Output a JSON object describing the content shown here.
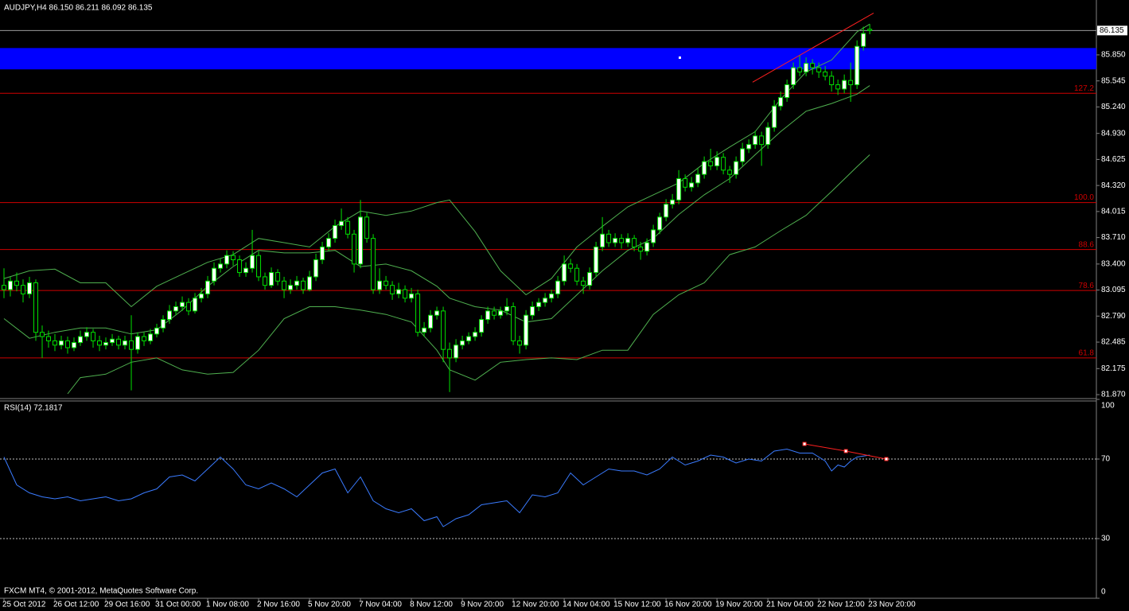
{
  "chart_data": {
    "type": "candlestick",
    "title": "AUDJPY,H4  86.150 86.211 86.092 86.135",
    "footer": "FXCM MT4, © 2001-2012, MetaQuotes Software Corp.",
    "up_color": "#ffffff",
    "down_color": "#000000",
    "candle_line_color": "#00e000",
    "band_color": "#4fb04f",
    "ylim": [
      81.833,
      86.474
    ],
    "xlim": [
      -0.625,
      171.6
    ],
    "yticks": [
      {
        "value": 85.85,
        "label": "85.850"
      },
      85.545,
      {
        "value": 85.24,
        "label": "85.240"
      },
      {
        "value": 84.93,
        "label": "84.930"
      },
      84.625,
      {
        "value": 84.32,
        "label": "84.320"
      },
      84.015,
      {
        "value": 83.71,
        "label": "83.710"
      },
      {
        "value": 83.4,
        "label": "83.400"
      },
      83.095,
      {
        "value": 82.79,
        "label": "82.790"
      },
      82.485,
      82.175,
      {
        "value": 81.87,
        "label": "81.870"
      }
    ],
    "xticks": [
      {
        "value": 0,
        "label": "25 Oct 2012"
      },
      {
        "value": 8,
        "label": "26 Oct 12:00"
      },
      {
        "value": 16,
        "label": "29 Oct 16:00"
      },
      {
        "value": 24,
        "label": "31 Oct 00:00"
      },
      {
        "value": 32,
        "label": "1 Nov 08:00"
      },
      {
        "value": 40,
        "label": "2 Nov 16:00"
      },
      {
        "value": 48,
        "label": "5 Nov 20:00"
      },
      {
        "value": 56,
        "label": "7 Nov 04:00"
      },
      {
        "value": 64,
        "label": "8 Nov 12:00"
      },
      {
        "value": 72,
        "label": "9 Nov 20:00"
      },
      {
        "value": 80,
        "label": "12 Nov 20:00"
      },
      {
        "value": 88,
        "label": "14 Nov 04:00"
      },
      {
        "value": 96,
        "label": "15 Nov 12:00"
      },
      {
        "value": 104,
        "label": "16 Nov 20:00"
      },
      {
        "value": 112,
        "label": "19 Nov 20:00"
      },
      {
        "value": 120,
        "label": "21 Nov 04:00"
      },
      {
        "value": 128,
        "label": "22 Nov 12:00"
      },
      {
        "value": 136,
        "label": "23 Nov 20:00"
      }
    ],
    "current_price": 86.135,
    "zone": {
      "color": "#0000ff",
      "range": [
        85.68,
        85.93
      ]
    },
    "levels": [
      {
        "label": "127.2",
        "price": 85.4
      },
      {
        "label": "100.0",
        "price": 84.12
      },
      {
        "label": "88.6",
        "price": 83.57
      },
      {
        "label": "78.6",
        "price": 83.09
      },
      {
        "label": "61.8",
        "price": 82.3
      }
    ],
    "level_color": "#d00000",
    "trendline": {
      "color": "#ff2020",
      "x": [
        117.6,
        136.6
      ],
      "values": [
        85.53,
        86.34
      ]
    },
    "candles": [
      [
        83.15,
        83.35,
        83.0,
        83.1
      ],
      [
        83.1,
        83.25,
        83.02,
        83.2
      ],
      [
        83.2,
        83.3,
        83.08,
        83.15
      ],
      [
        83.15,
        83.22,
        82.95,
        83.05
      ],
      [
        83.05,
        83.25,
        83.0,
        83.18
      ],
      [
        83.18,
        83.22,
        82.5,
        82.6
      ],
      [
        82.6,
        82.68,
        82.3,
        82.55
      ],
      [
        82.55,
        82.62,
        82.42,
        82.5
      ],
      [
        82.5,
        82.58,
        82.38,
        82.45
      ],
      [
        82.45,
        82.56,
        82.4,
        82.5
      ],
      [
        82.5,
        82.55,
        82.35,
        82.42
      ],
      [
        82.42,
        82.54,
        82.38,
        82.48
      ],
      [
        82.48,
        82.62,
        82.44,
        82.55
      ],
      [
        82.55,
        82.66,
        82.5,
        82.6
      ],
      [
        82.6,
        82.64,
        82.42,
        82.5
      ],
      [
        82.5,
        82.56,
        82.38,
        82.45
      ],
      [
        82.45,
        82.54,
        82.4,
        82.48
      ],
      [
        82.48,
        82.58,
        82.44,
        82.52
      ],
      [
        82.52,
        82.56,
        82.4,
        82.45
      ],
      [
        82.45,
        82.56,
        82.4,
        82.5
      ],
      [
        82.5,
        82.8,
        81.92,
        82.4
      ],
      [
        82.4,
        82.6,
        82.35,
        82.55
      ],
      [
        82.55,
        82.6,
        82.44,
        82.5
      ],
      [
        82.5,
        82.64,
        82.46,
        82.58
      ],
      [
        82.58,
        82.7,
        82.54,
        82.65
      ],
      [
        82.65,
        82.8,
        82.6,
        82.75
      ],
      [
        82.75,
        82.92,
        82.7,
        82.85
      ],
      [
        82.85,
        82.96,
        82.8,
        82.9
      ],
      [
        82.9,
        83.02,
        82.85,
        82.95
      ],
      [
        82.95,
        83.0,
        82.8,
        82.85
      ],
      [
        82.85,
        83.06,
        82.82,
        83.0
      ],
      [
        83.0,
        83.12,
        82.95,
        83.05
      ],
      [
        83.05,
        83.26,
        83.0,
        83.2
      ],
      [
        83.2,
        83.42,
        83.15,
        83.35
      ],
      [
        83.35,
        83.46,
        83.3,
        83.4
      ],
      [
        83.4,
        83.56,
        83.35,
        83.5
      ],
      [
        83.5,
        83.55,
        83.38,
        83.45
      ],
      [
        83.45,
        83.5,
        83.25,
        83.3
      ],
      [
        83.3,
        83.42,
        83.25,
        83.35
      ],
      [
        83.35,
        83.8,
        83.3,
        83.5
      ],
      [
        83.5,
        83.55,
        83.2,
        83.25
      ],
      [
        83.25,
        83.3,
        83.1,
        83.15
      ],
      [
        83.15,
        83.36,
        83.12,
        83.3
      ],
      [
        83.3,
        83.34,
        83.15,
        83.2
      ],
      [
        83.2,
        83.25,
        83.0,
        83.1
      ],
      [
        83.1,
        83.22,
        83.05,
        83.15
      ],
      [
        83.15,
        83.26,
        83.1,
        83.2
      ],
      [
        83.2,
        83.24,
        83.05,
        83.1
      ],
      [
        83.1,
        83.32,
        83.08,
        83.25
      ],
      [
        83.25,
        83.52,
        83.2,
        83.45
      ],
      [
        83.45,
        83.66,
        83.4,
        83.6
      ],
      [
        83.6,
        83.76,
        83.55,
        83.7
      ],
      [
        83.7,
        83.92,
        83.65,
        83.85
      ],
      [
        83.85,
        84.05,
        83.8,
        83.9
      ],
      [
        83.9,
        83.95,
        83.7,
        83.75
      ],
      [
        83.75,
        83.8,
        83.3,
        83.4
      ],
      [
        83.4,
        84.15,
        83.35,
        83.95
      ],
      [
        83.95,
        84.0,
        83.65,
        83.7
      ],
      [
        83.7,
        83.75,
        83.05,
        83.1
      ],
      [
        83.1,
        83.35,
        83.05,
        83.2
      ],
      [
        83.2,
        83.26,
        83.1,
        83.15
      ],
      [
        83.15,
        83.2,
        82.98,
        83.05
      ],
      [
        83.05,
        83.18,
        83.0,
        83.1
      ],
      [
        83.1,
        83.15,
        82.95,
        83.0
      ],
      [
        83.0,
        83.12,
        82.95,
        83.05
      ],
      [
        83.05,
        83.1,
        82.55,
        82.6
      ],
      [
        82.6,
        82.72,
        82.55,
        82.65
      ],
      [
        82.65,
        82.86,
        82.6,
        82.8
      ],
      [
        82.8,
        82.9,
        82.75,
        82.85
      ],
      [
        82.85,
        82.9,
        82.25,
        82.4
      ],
      [
        82.4,
        82.48,
        81.9,
        82.3
      ],
      [
        82.3,
        82.52,
        82.25,
        82.45
      ],
      [
        82.45,
        82.56,
        82.4,
        82.5
      ],
      [
        82.5,
        82.6,
        82.46,
        82.55
      ],
      [
        82.55,
        82.66,
        82.5,
        82.6
      ],
      [
        82.6,
        82.8,
        82.55,
        82.75
      ],
      [
        82.75,
        82.9,
        82.7,
        82.85
      ],
      [
        82.85,
        82.9,
        82.75,
        82.8
      ],
      [
        82.8,
        82.9,
        82.76,
        82.85
      ],
      [
        82.85,
        83.0,
        82.8,
        82.9
      ],
      [
        82.9,
        82.95,
        82.45,
        82.5
      ],
      [
        82.5,
        82.56,
        82.35,
        82.45
      ],
      [
        82.45,
        82.86,
        82.4,
        82.8
      ],
      [
        82.8,
        82.96,
        82.75,
        82.9
      ],
      [
        82.9,
        83.0,
        82.85,
        82.95
      ],
      [
        82.95,
        83.06,
        82.9,
        83.0
      ],
      [
        83.0,
        83.1,
        82.95,
        83.05
      ],
      [
        83.05,
        83.26,
        83.0,
        83.2
      ],
      [
        83.2,
        83.5,
        83.15,
        83.4
      ],
      [
        83.4,
        83.46,
        83.3,
        83.35
      ],
      [
        83.35,
        83.4,
        83.15,
        83.2
      ],
      [
        83.2,
        83.25,
        83.05,
        83.15
      ],
      [
        83.15,
        83.36,
        83.1,
        83.3
      ],
      [
        83.3,
        83.66,
        83.25,
        83.6
      ],
      [
        83.6,
        83.95,
        83.55,
        83.75
      ],
      [
        83.75,
        83.8,
        83.6,
        83.65
      ],
      [
        83.65,
        83.76,
        83.6,
        83.7
      ],
      [
        83.7,
        83.75,
        83.58,
        83.65
      ],
      [
        83.65,
        83.76,
        83.6,
        83.7
      ],
      [
        83.7,
        83.74,
        83.55,
        83.6
      ],
      [
        83.6,
        83.66,
        83.45,
        83.55
      ],
      [
        83.55,
        83.7,
        83.5,
        83.65
      ],
      [
        83.65,
        83.86,
        83.6,
        83.8
      ],
      [
        83.8,
        84.0,
        83.75,
        83.95
      ],
      [
        83.95,
        84.16,
        83.9,
        84.1
      ],
      [
        84.1,
        84.22,
        84.05,
        84.15
      ],
      [
        84.15,
        84.5,
        84.1,
        84.4
      ],
      [
        84.4,
        84.45,
        84.25,
        84.3
      ],
      [
        84.3,
        84.42,
        84.25,
        84.35
      ],
      [
        84.35,
        84.52,
        84.3,
        84.45
      ],
      [
        84.45,
        84.66,
        84.4,
        84.6
      ],
      [
        84.6,
        84.75,
        84.5,
        84.55
      ],
      [
        84.55,
        84.72,
        84.5,
        84.65
      ],
      [
        84.65,
        84.7,
        84.45,
        84.5
      ],
      [
        84.5,
        84.55,
        84.35,
        84.45
      ],
      [
        84.45,
        84.66,
        84.4,
        84.6
      ],
      [
        84.6,
        84.82,
        84.55,
        84.75
      ],
      [
        84.75,
        84.86,
        84.7,
        84.8
      ],
      [
        84.8,
        84.96,
        84.75,
        84.9
      ],
      [
        84.9,
        84.95,
        84.55,
        84.8
      ],
      [
        84.8,
        85.06,
        84.75,
        85.0
      ],
      [
        85.0,
        85.32,
        84.95,
        85.25
      ],
      [
        85.25,
        85.42,
        85.2,
        85.35
      ],
      [
        85.35,
        85.56,
        85.3,
        85.5
      ],
      [
        85.5,
        85.76,
        85.45,
        85.7
      ],
      [
        85.7,
        85.85,
        85.6,
        85.65
      ],
      [
        85.65,
        85.82,
        85.6,
        85.75
      ],
      [
        85.75,
        85.8,
        85.62,
        85.7
      ],
      [
        85.7,
        85.76,
        85.58,
        85.65
      ],
      [
        85.65,
        85.72,
        85.55,
        85.6
      ],
      [
        85.6,
        85.66,
        85.42,
        85.5
      ],
      [
        85.5,
        85.56,
        85.38,
        85.45
      ],
      [
        85.45,
        85.62,
        85.4,
        85.55
      ],
      [
        85.55,
        85.76,
        85.3,
        85.5
      ],
      [
        85.5,
        86.02,
        85.45,
        85.95
      ],
      [
        85.95,
        86.18,
        85.9,
        86.1
      ],
      [
        86.15,
        86.211,
        86.092,
        86.135
      ]
    ],
    "bands": [
      {
        "x": [
          0,
          4,
          8,
          12,
          16,
          20,
          24,
          28,
          32,
          36,
          40,
          44,
          48,
          52,
          56,
          60,
          64,
          68,
          70,
          74,
          78,
          82,
          86,
          90,
          94,
          98,
          102,
          106,
          110,
          114,
          118,
          122,
          126,
          130,
          134,
          136
        ],
        "values": [
          83.23,
          83.32,
          83.34,
          83.18,
          83.18,
          82.9,
          83.14,
          83.28,
          83.42,
          83.51,
          83.7,
          83.65,
          83.6,
          83.84,
          84.02,
          83.97,
          84.02,
          84.12,
          84.15,
          83.78,
          83.32,
          83.04,
          83.23,
          83.6,
          83.84,
          84.07,
          84.21,
          84.35,
          84.58,
          84.77,
          84.95,
          85.33,
          85.65,
          85.79,
          86.12,
          86.21
        ]
      },
      {
        "x": [
          0,
          4,
          8,
          12,
          16,
          20,
          24,
          28,
          32,
          36,
          40,
          44,
          48,
          52,
          56,
          60,
          64,
          68,
          70,
          74,
          78,
          82,
          86,
          90,
          94,
          98,
          102,
          106,
          110,
          114,
          118,
          122,
          126,
          130,
          134,
          136
        ],
        "values": [
          82.76,
          82.53,
          82.6,
          82.65,
          82.65,
          82.58,
          82.63,
          82.86,
          83.14,
          83.37,
          83.56,
          83.53,
          83.53,
          83.56,
          83.37,
          83.4,
          83.32,
          83.14,
          83.0,
          82.9,
          82.86,
          82.72,
          82.76,
          83.04,
          83.32,
          83.56,
          83.7,
          83.98,
          84.21,
          84.4,
          84.68,
          84.95,
          85.19,
          85.28,
          85.39,
          85.49
        ]
      },
      {
        "x": [
          10,
          12,
          16,
          20,
          24,
          28,
          32,
          36,
          40,
          44,
          48,
          52,
          56,
          60,
          64,
          68,
          70,
          74,
          78,
          82,
          86,
          90,
          94,
          98,
          102,
          106,
          110,
          114,
          118,
          122,
          126,
          130,
          134,
          136
        ],
        "values": [
          81.88,
          82.07,
          82.11,
          82.25,
          82.3,
          82.16,
          82.11,
          82.13,
          82.39,
          82.76,
          82.9,
          82.9,
          82.86,
          82.81,
          82.72,
          82.39,
          82.16,
          82.04,
          82.25,
          82.28,
          82.3,
          82.28,
          82.39,
          82.39,
          82.81,
          83.04,
          83.18,
          83.51,
          83.6,
          83.79,
          83.97,
          84.25,
          84.54,
          84.68
        ]
      }
    ],
    "rsi": {
      "title": "RSI(14) 72.1817",
      "color": "#3a7bff",
      "ylim": [
        0,
        100
      ],
      "yticks": [
        100,
        70,
        30,
        0
      ],
      "levels": [
        70,
        30
      ],
      "x": [
        0,
        2,
        4,
        6,
        8,
        10,
        12,
        14,
        16,
        18,
        20,
        22,
        24,
        26,
        28,
        30,
        32,
        34,
        36,
        38,
        40,
        42,
        44,
        46,
        48,
        50,
        52,
        54,
        56,
        58,
        60,
        62,
        64,
        66,
        68,
        69,
        71,
        73,
        75,
        77,
        79,
        81,
        83,
        85,
        87,
        89,
        91,
        93,
        95,
        97,
        99,
        101,
        103,
        105,
        107,
        109,
        111,
        113,
        115,
        117,
        119,
        121,
        123,
        125,
        127,
        129,
        130,
        131,
        132,
        133,
        134,
        136
      ],
      "values": [
        71,
        57,
        53,
        51,
        50,
        51,
        49,
        50,
        51,
        49,
        50,
        53,
        55,
        61,
        62,
        59,
        65,
        71,
        65,
        57,
        55,
        58,
        55,
        51,
        57,
        63,
        65,
        53,
        61,
        49,
        45,
        43,
        45,
        39,
        41,
        36,
        40,
        42,
        47,
        48,
        49,
        43,
        52,
        51,
        53,
        63,
        57,
        61,
        65,
        64,
        64,
        62,
        65,
        71,
        67,
        69,
        72,
        71,
        68,
        70,
        69,
        74,
        75,
        73,
        73,
        69,
        64,
        67,
        66,
        69,
        71,
        72
      ],
      "trendline": {
        "color": "#ff2020",
        "x": [
          125.75,
          132.25,
          138.6
        ],
        "values": [
          77.6,
          74,
          70
        ]
      }
    }
  }
}
